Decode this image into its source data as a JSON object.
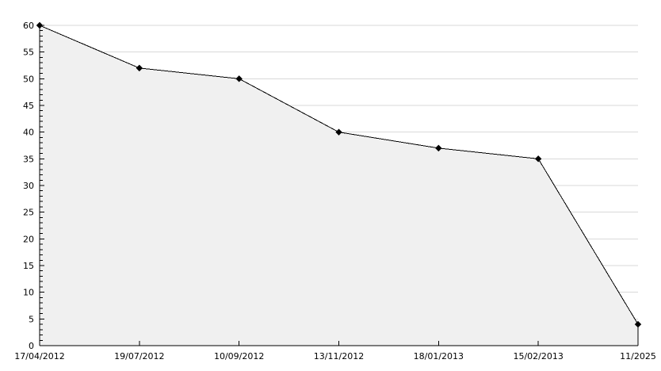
{
  "chart_data": {
    "type": "area",
    "title": "",
    "xlabel": "",
    "ylabel": "",
    "categories": [
      "17/04/2012",
      "19/07/2012",
      "10/09/2012",
      "13/11/2012",
      "18/01/2013",
      "15/02/2013",
      "11/2025"
    ],
    "values": [
      60,
      52,
      50,
      40,
      37,
      35,
      4
    ],
    "ylim": [
      0,
      60
    ],
    "y_major_tick_step": 5,
    "y_minor_tick_step": 1,
    "y_tick_labels": [
      "0",
      "5",
      "10",
      "15",
      "20",
      "25",
      "30",
      "35",
      "40",
      "45",
      "50",
      "55",
      "60"
    ],
    "grid": true,
    "legend": "none",
    "marker": "diamond",
    "colors": {
      "background": "#ffffff",
      "line": "#000000",
      "marker": "#000000",
      "area_fill": "#f0f0f0",
      "grid": "#d9d9d9",
      "axis": "#000000",
      "text": "#000000"
    }
  }
}
